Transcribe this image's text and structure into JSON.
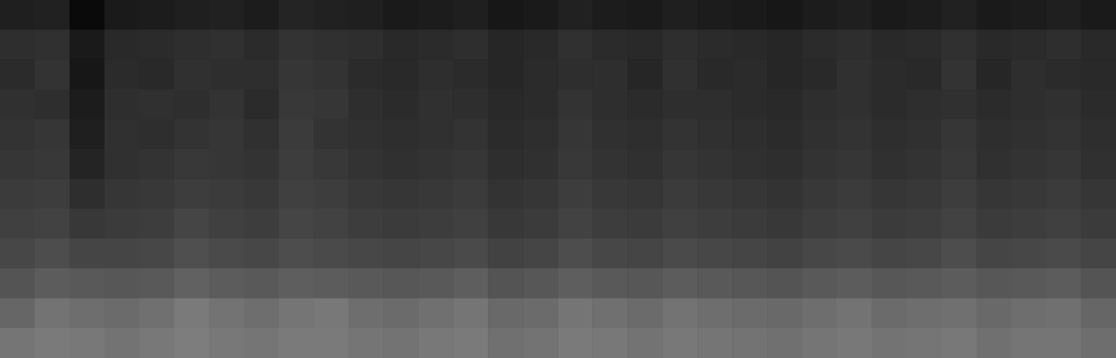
{
  "chart_data": {
    "type": "heatmap",
    "tick_labels": false,
    "grid": false,
    "zlim": [
      0,
      100
    ],
    "cells": [
      [
        12,
        13,
        4,
        10,
        11,
        12,
        13,
        11,
        14,
        13,
        12,
        10,
        11,
        12,
        9,
        10,
        13,
        11,
        10,
        12,
        11,
        10,
        9,
        11,
        12,
        10,
        11,
        13,
        10,
        11,
        12,
        10
      ],
      [
        18,
        19,
        10,
        16,
        17,
        18,
        19,
        17,
        20,
        19,
        18,
        16,
        17,
        18,
        15,
        16,
        19,
        17,
        16,
        18,
        17,
        16,
        15,
        17,
        18,
        16,
        17,
        19,
        16,
        17,
        18,
        16
      ],
      [
        17,
        20,
        9,
        17,
        16,
        19,
        18,
        18,
        21,
        20,
        17,
        16,
        18,
        17,
        15,
        17,
        18,
        18,
        15,
        19,
        16,
        17,
        15,
        16,
        19,
        17,
        16,
        20,
        15,
        18,
        17,
        16
      ],
      [
        19,
        18,
        11,
        18,
        19,
        18,
        20,
        17,
        22,
        21,
        18,
        17,
        19,
        18,
        16,
        17,
        20,
        18,
        17,
        18,
        18,
        17,
        16,
        18,
        19,
        17,
        18,
        19,
        17,
        18,
        19,
        17
      ],
      [
        20,
        21,
        12,
        19,
        18,
        20,
        21,
        19,
        23,
        20,
        19,
        18,
        19,
        20,
        17,
        18,
        21,
        19,
        18,
        20,
        19,
        18,
        17,
        19,
        20,
        18,
        19,
        21,
        18,
        19,
        20,
        18
      ],
      [
        21,
        22,
        14,
        19,
        20,
        22,
        21,
        20,
        24,
        22,
        20,
        19,
        20,
        21,
        18,
        19,
        22,
        20,
        19,
        21,
        20,
        19,
        18,
        20,
        21,
        19,
        20,
        22,
        19,
        20,
        21,
        19
      ],
      [
        23,
        24,
        18,
        21,
        22,
        24,
        23,
        22,
        25,
        24,
        22,
        21,
        22,
        23,
        20,
        21,
        24,
        22,
        21,
        23,
        22,
        21,
        20,
        22,
        23,
        21,
        22,
        24,
        21,
        22,
        23,
        21
      ],
      [
        25,
        26,
        22,
        23,
        24,
        27,
        25,
        24,
        27,
        26,
        24,
        23,
        24,
        25,
        22,
        23,
        26,
        24,
        23,
        25,
        24,
        23,
        22,
        24,
        25,
        23,
        24,
        26,
        23,
        24,
        25,
        23
      ],
      [
        28,
        30,
        27,
        27,
        28,
        31,
        29,
        28,
        30,
        29,
        28,
        27,
        28,
        29,
        26,
        27,
        30,
        28,
        27,
        29,
        28,
        27,
        26,
        28,
        29,
        27,
        28,
        30,
        27,
        28,
        29,
        27
      ],
      [
        33,
        36,
        35,
        34,
        35,
        38,
        36,
        35,
        37,
        36,
        35,
        34,
        35,
        37,
        33,
        34,
        37,
        35,
        34,
        36,
        35,
        34,
        33,
        35,
        36,
        34,
        35,
        36,
        34,
        35,
        36,
        33
      ],
      [
        40,
        45,
        43,
        42,
        44,
        48,
        45,
        43,
        46,
        47,
        43,
        42,
        44,
        46,
        41,
        42,
        46,
        44,
        42,
        45,
        43,
        42,
        41,
        43,
        45,
        42,
        43,
        44,
        41,
        43,
        44,
        40
      ],
      [
        46,
        48,
        47,
        45,
        47,
        49,
        47,
        46,
        48,
        48,
        46,
        45,
        47,
        48,
        44,
        45,
        48,
        47,
        45,
        47,
        46,
        45,
        44,
        46,
        47,
        45,
        46,
        47,
        44,
        46,
        46,
        43
      ]
    ]
  }
}
